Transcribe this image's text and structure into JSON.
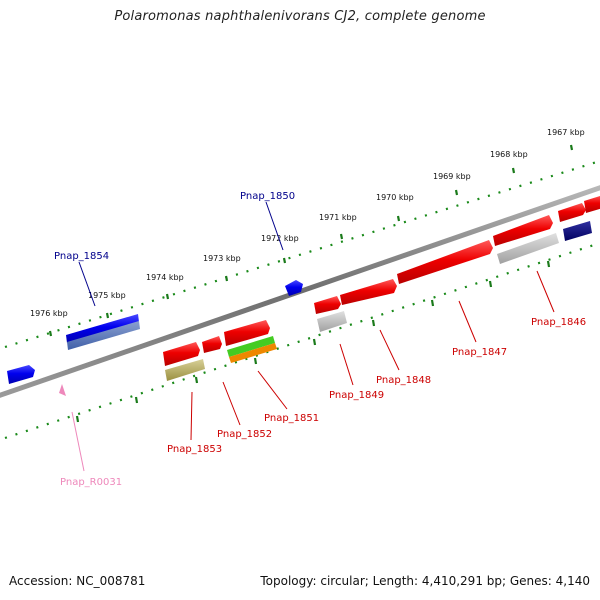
{
  "title": "Polaromonas naphthalenivorans CJ2, complete genome",
  "footer": {
    "accession": "Accession: NC_008781",
    "topology": "Topology: circular; Length: 4,410,291 bp; Genes: 4,140"
  },
  "scale_ticks": [
    "1976 kbp",
    "1975 kbp",
    "1974 kbp",
    "1973 kbp",
    "1972 kbp",
    "1971 kbp",
    "1970 kbp",
    "1969 kbp",
    "1968 kbp",
    "1967 kbp"
  ],
  "gene_labels": {
    "pnap_1854": "Pnap_1854",
    "pnap_1850": "Pnap_1850",
    "pnap_1853": "Pnap_1853",
    "pnap_1852": "Pnap_1852",
    "pnap_1851": "Pnap_1851",
    "pnap_1849": "Pnap_1849",
    "pnap_1848": "Pnap_1848",
    "pnap_1847": "Pnap_1847",
    "pnap_1846": "Pnap_1846",
    "pnap_r0031": "Pnap_R0031"
  },
  "colors": {
    "backbone": "#7a7a7a",
    "scale_track": "#1a8a1a",
    "forward_label": "#00008b",
    "reverse_label": "#cc0000",
    "rna_label": "#ee88bb",
    "cds_red": "#ee0000",
    "cds_blue": "#0000ee",
    "cds_navy": "#000080",
    "olive": "#b0a860",
    "gray_feature": "#b8b8b8",
    "green_feature": "#44cc22",
    "orange_feature": "#ee8800"
  }
}
